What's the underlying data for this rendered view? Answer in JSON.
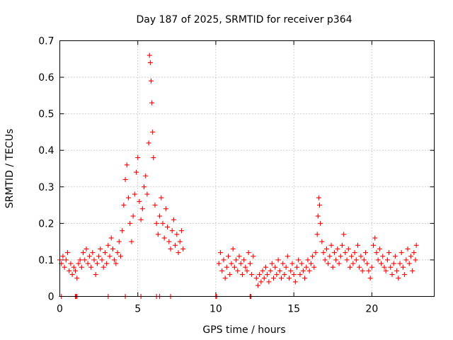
{
  "chart_data": {
    "type": "scatter",
    "title": "Day 187 of 2025, SRMTID for receiver p364",
    "xlabel": "GPS time / hours",
    "ylabel": "SRMTID / TECUs",
    "xlim": [
      0,
      24
    ],
    "ylim": [
      0,
      0.7
    ],
    "xticks": [
      0,
      5,
      10,
      15,
      20
    ],
    "xtick_labels": [
      "0",
      "5",
      "10",
      "15",
      "20"
    ],
    "yticks": [
      0,
      0.1,
      0.2,
      0.3,
      0.4,
      0.5,
      0.6,
      0.7
    ],
    "ytick_labels": [
      "0",
      "0.1",
      "0.2",
      "0.3",
      "0.4",
      "0.5",
      "0.6",
      "0.7"
    ],
    "grid": true,
    "marker": "+",
    "marker_color": "#ff0000",
    "series": [
      {
        "name": "SRMTID",
        "points": [
          [
            0.0,
            0.1
          ],
          [
            0.1,
            0.09
          ],
          [
            0.2,
            0.11
          ],
          [
            0.3,
            0.08
          ],
          [
            0.4,
            0.1
          ],
          [
            0.5,
            0.12
          ],
          [
            0.6,
            0.07
          ],
          [
            0.7,
            0.09
          ],
          [
            0.8,
            0.06
          ],
          [
            0.9,
            0.08
          ],
          [
            1.0,
            0.07
          ],
          [
            1.1,
            0.05
          ],
          [
            1.2,
            0.09
          ],
          [
            1.3,
            0.1
          ],
          [
            1.4,
            0.08
          ],
          [
            1.5,
            0.12
          ],
          [
            1.6,
            0.1
          ],
          [
            1.7,
            0.13
          ],
          [
            1.8,
            0.09
          ],
          [
            1.9,
            0.11
          ],
          [
            2.0,
            0.08
          ],
          [
            2.1,
            0.12
          ],
          [
            2.2,
            0.1
          ],
          [
            2.3,
            0.06
          ],
          [
            2.4,
            0.09
          ],
          [
            2.5,
            0.11
          ],
          [
            2.6,
            0.13
          ],
          [
            2.7,
            0.1
          ],
          [
            2.8,
            0.08
          ],
          [
            2.9,
            0.12
          ],
          [
            3.0,
            0.09
          ],
          [
            3.1,
            0.14
          ],
          [
            3.2,
            0.11
          ],
          [
            3.3,
            0.16
          ],
          [
            3.4,
            0.13
          ],
          [
            3.5,
            0.1
          ],
          [
            3.6,
            0.09
          ],
          [
            3.7,
            0.12
          ],
          [
            3.8,
            0.15
          ],
          [
            3.9,
            0.11
          ],
          [
            4.0,
            0.18
          ],
          [
            4.1,
            0.25
          ],
          [
            4.2,
            0.32
          ],
          [
            4.3,
            0.36
          ],
          [
            4.4,
            0.27
          ],
          [
            4.5,
            0.2
          ],
          [
            4.6,
            0.15
          ],
          [
            4.7,
            0.22
          ],
          [
            4.8,
            0.28
          ],
          [
            4.9,
            0.34
          ],
          [
            5.0,
            0.38
          ],
          [
            5.1,
            0.26
          ],
          [
            5.2,
            0.21
          ],
          [
            5.3,
            0.24
          ],
          [
            5.4,
            0.3
          ],
          [
            5.5,
            0.33
          ],
          [
            5.6,
            0.28
          ],
          [
            5.7,
            0.42
          ],
          [
            5.75,
            0.66
          ],
          [
            5.8,
            0.64
          ],
          [
            5.85,
            0.59
          ],
          [
            5.9,
            0.53
          ],
          [
            5.95,
            0.45
          ],
          [
            6.0,
            0.38
          ],
          [
            6.1,
            0.25
          ],
          [
            6.2,
            0.2
          ],
          [
            6.3,
            0.17
          ],
          [
            6.4,
            0.22
          ],
          [
            6.5,
            0.27
          ],
          [
            6.6,
            0.2
          ],
          [
            6.7,
            0.16
          ],
          [
            6.8,
            0.24
          ],
          [
            6.9,
            0.19
          ],
          [
            7.0,
            0.15
          ],
          [
            7.1,
            0.13
          ],
          [
            7.2,
            0.18
          ],
          [
            7.3,
            0.21
          ],
          [
            7.4,
            0.14
          ],
          [
            7.5,
            0.17
          ],
          [
            7.6,
            0.12
          ],
          [
            7.7,
            0.15
          ],
          [
            7.8,
            0.18
          ],
          [
            7.9,
            0.13
          ],
          [
            10.2,
            0.09
          ],
          [
            10.3,
            0.12
          ],
          [
            10.4,
            0.07
          ],
          [
            10.5,
            0.1
          ],
          [
            10.6,
            0.05
          ],
          [
            10.7,
            0.08
          ],
          [
            10.8,
            0.11
          ],
          [
            10.9,
            0.06
          ],
          [
            11.0,
            0.09
          ],
          [
            11.1,
            0.13
          ],
          [
            11.2,
            0.08
          ],
          [
            11.3,
            0.1
          ],
          [
            11.4,
            0.07
          ],
          [
            11.5,
            0.11
          ],
          [
            11.6,
            0.09
          ],
          [
            11.7,
            0.06
          ],
          [
            11.8,
            0.1
          ],
          [
            11.9,
            0.08
          ],
          [
            12.0,
            0.07
          ],
          [
            12.1,
            0.12
          ],
          [
            12.2,
            0.09
          ],
          [
            12.3,
            0.06
          ],
          [
            12.4,
            0.11
          ],
          [
            12.6,
            0.05
          ],
          [
            12.7,
            0.03
          ],
          [
            12.8,
            0.06
          ],
          [
            12.9,
            0.04
          ],
          [
            13.0,
            0.07
          ],
          [
            13.1,
            0.05
          ],
          [
            13.2,
            0.08
          ],
          [
            13.3,
            0.06
          ],
          [
            13.4,
            0.04
          ],
          [
            13.5,
            0.07
          ],
          [
            13.6,
            0.09
          ],
          [
            13.7,
            0.05
          ],
          [
            13.8,
            0.08
          ],
          [
            13.9,
            0.06
          ],
          [
            14.0,
            0.1
          ],
          [
            14.1,
            0.07
          ],
          [
            14.2,
            0.05
          ],
          [
            14.3,
            0.09
          ],
          [
            14.4,
            0.06
          ],
          [
            14.5,
            0.08
          ],
          [
            14.6,
            0.11
          ],
          [
            14.7,
            0.05
          ],
          [
            14.8,
            0.07
          ],
          [
            14.9,
            0.09
          ],
          [
            15.0,
            0.06
          ],
          [
            15.1,
            0.04
          ],
          [
            15.2,
            0.08
          ],
          [
            15.3,
            0.1
          ],
          [
            15.4,
            0.06
          ],
          [
            15.5,
            0.09
          ],
          [
            15.6,
            0.07
          ],
          [
            15.7,
            0.05
          ],
          [
            15.8,
            0.08
          ],
          [
            15.9,
            0.1
          ],
          [
            16.0,
            0.07
          ],
          [
            16.1,
            0.09
          ],
          [
            16.2,
            0.11
          ],
          [
            16.3,
            0.08
          ],
          [
            16.4,
            0.12
          ],
          [
            16.5,
            0.17
          ],
          [
            16.55,
            0.22
          ],
          [
            16.6,
            0.27
          ],
          [
            16.65,
            0.25
          ],
          [
            16.7,
            0.2
          ],
          [
            16.8,
            0.15
          ],
          [
            16.9,
            0.12
          ],
          [
            17.0,
            0.1
          ],
          [
            17.1,
            0.13
          ],
          [
            17.2,
            0.09
          ],
          [
            17.3,
            0.11
          ],
          [
            17.4,
            0.14
          ],
          [
            17.5,
            0.08
          ],
          [
            17.6,
            0.12
          ],
          [
            17.7,
            0.1
          ],
          [
            17.8,
            0.13
          ],
          [
            17.9,
            0.09
          ],
          [
            18.0,
            0.11
          ],
          [
            18.1,
            0.14
          ],
          [
            18.2,
            0.17
          ],
          [
            18.3,
            0.12
          ],
          [
            18.4,
            0.1
          ],
          [
            18.5,
            0.13
          ],
          [
            18.6,
            0.08
          ],
          [
            18.7,
            0.11
          ],
          [
            18.8,
            0.09
          ],
          [
            18.9,
            0.12
          ],
          [
            19.0,
            0.1
          ],
          [
            19.1,
            0.14
          ],
          [
            19.2,
            0.08
          ],
          [
            19.3,
            0.11
          ],
          [
            19.4,
            0.07
          ],
          [
            19.5,
            0.1
          ],
          [
            19.6,
            0.12
          ],
          [
            19.7,
            0.09
          ],
          [
            19.8,
            0.07
          ],
          [
            19.9,
            0.05
          ],
          [
            20.0,
            0.08
          ],
          [
            20.1,
            0.14
          ],
          [
            20.2,
            0.16
          ],
          [
            20.3,
            0.12
          ],
          [
            20.4,
            0.1
          ],
          [
            20.5,
            0.13
          ],
          [
            20.6,
            0.09
          ],
          [
            20.7,
            0.11
          ],
          [
            20.8,
            0.08
          ],
          [
            20.9,
            0.07
          ],
          [
            21.0,
            0.1
          ],
          [
            21.1,
            0.12
          ],
          [
            21.2,
            0.08
          ],
          [
            21.3,
            0.06
          ],
          [
            21.4,
            0.09
          ],
          [
            21.5,
            0.11
          ],
          [
            21.6,
            0.07
          ],
          [
            21.7,
            0.05
          ],
          [
            21.8,
            0.09
          ],
          [
            21.9,
            0.12
          ],
          [
            22.0,
            0.08
          ],
          [
            22.1,
            0.06
          ],
          [
            22.2,
            0.1
          ],
          [
            22.3,
            0.13
          ],
          [
            22.4,
            0.09
          ],
          [
            22.5,
            0.11
          ],
          [
            22.6,
            0.07
          ],
          [
            22.7,
            0.12
          ],
          [
            22.8,
            0.1
          ],
          [
            22.85,
            0.14
          ]
        ]
      }
    ],
    "zero_points_x": [
      0.1,
      1.0,
      1.05,
      1.1,
      3.1,
      4.2,
      5.2,
      6.2,
      6.4,
      7.1,
      10.0,
      10.05,
      12.2,
      12.25
    ]
  }
}
